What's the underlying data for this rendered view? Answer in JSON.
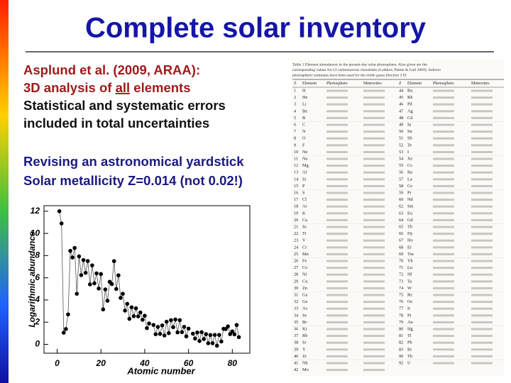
{
  "slide": {
    "title": "Complete solar inventory",
    "text_lines": [
      [
        "Asplund et al. (2009, ARAA):"
      ],
      [
        "3D analysis of ",
        "all",
        " elements"
      ],
      [
        "Statistical and systematic errors"
      ],
      [
        "included in total uncertainties"
      ],
      [
        "Revising an astronomical yardstick"
      ],
      [
        "Solar metallicity Z=0.014 (not 0.02!)"
      ]
    ]
  },
  "chart_data": {
    "type": "line",
    "xlabel": "Atomic number",
    "ylabel": "Logarithmic abundance",
    "color": "#000000",
    "x": [
      1,
      2,
      3,
      4,
      5,
      6,
      7,
      8,
      9,
      10,
      11,
      12,
      13,
      14,
      15,
      16,
      17,
      18,
      19,
      20,
      21,
      22,
      23,
      24,
      25,
      26,
      27,
      28,
      29,
      30,
      31,
      32,
      33,
      34,
      35,
      36,
      37,
      38,
      39,
      40,
      41,
      42,
      43,
      44,
      45,
      46,
      47,
      48,
      49,
      50,
      51,
      52,
      53,
      54,
      55,
      56,
      57,
      58,
      59,
      60,
      61,
      62,
      63,
      64,
      65,
      66,
      67,
      68,
      69,
      70,
      71,
      72,
      73,
      74,
      75,
      76,
      77,
      78,
      79,
      80,
      81,
      82,
      83
    ],
    "values": [
      12.0,
      10.9,
      1.05,
      1.38,
      2.7,
      8.43,
      7.83,
      8.69,
      4.56,
      7.93,
      6.24,
      7.6,
      6.45,
      7.51,
      5.41,
      7.12,
      5.5,
      6.4,
      5.03,
      6.34,
      3.15,
      4.95,
      3.93,
      5.64,
      5.43,
      7.5,
      4.99,
      6.22,
      4.19,
      4.56,
      3.04,
      3.65,
      2.3,
      3.34,
      2.54,
      3.25,
      2.52,
      2.87,
      2.21,
      2.58,
      1.46,
      1.88,
      null,
      1.75,
      0.91,
      1.57,
      0.94,
      1.71,
      0.8,
      2.04,
      1.01,
      2.18,
      1.55,
      2.24,
      1.08,
      2.18,
      1.1,
      1.58,
      0.72,
      1.42,
      null,
      0.96,
      0.52,
      1.07,
      0.3,
      1.1,
      0.48,
      0.92,
      0.1,
      0.84,
      0.1,
      0.85,
      -0.12,
      0.85,
      0.26,
      1.4,
      1.38,
      1.62,
      0.92,
      1.17,
      0.9,
      1.75,
      0.65
    ],
    "xlim": [
      -6,
      88
    ],
    "ylim": [
      -0.8,
      12.5
    ],
    "xticks": [
      0,
      20,
      40,
      60,
      80
    ],
    "yticks": [
      0,
      2,
      4,
      6,
      8,
      10,
      12
    ]
  },
  "table": {
    "caption": [
      "Table 1 Element abundances in the present-day solar photosphere. Also given are the",
      "corresponding values for CI carbonaceous chondrites (Lodders, Palme & Gail 2009). Indirect",
      "photospheric estimates have been used for the noble gases (Section 3.9)"
    ],
    "header": [
      "Z",
      "Element",
      "Photosphere",
      "Meteorites",
      "Z",
      "Element",
      "Photosphere",
      "Meteorites"
    ],
    "rows": [
      [
        "1",
        "H",
        "44",
        "Ru"
      ],
      [
        "2",
        "He",
        "45",
        "Rh"
      ],
      [
        "3",
        "Li",
        "46",
        "Pd"
      ],
      [
        "4",
        "Be",
        "47",
        "Ag"
      ],
      [
        "5",
        "B",
        "48",
        "Cd"
      ],
      [
        "6",
        "C",
        "49",
        "In"
      ],
      [
        "7",
        "N",
        "50",
        "Sn"
      ],
      [
        "8",
        "O",
        "51",
        "Sb"
      ],
      [
        "9",
        "F",
        "52",
        "Te"
      ],
      [
        "10",
        "Ne",
        "53",
        "I"
      ],
      [
        "11",
        "Na",
        "54",
        "Xe"
      ],
      [
        "12",
        "Mg",
        "55",
        "Cs"
      ],
      [
        "13",
        "Al",
        "56",
        "Ba"
      ],
      [
        "14",
        "Si",
        "57",
        "La"
      ],
      [
        "15",
        "P",
        "58",
        "Ce"
      ],
      [
        "16",
        "S",
        "59",
        "Pr"
      ],
      [
        "17",
        "Cl",
        "60",
        "Nd"
      ],
      [
        "18",
        "Ar",
        "62",
        "Sm"
      ],
      [
        "19",
        "K",
        "63",
        "Eu"
      ],
      [
        "20",
        "Ca",
        "64",
        "Gd"
      ],
      [
        "21",
        "Sc",
        "65",
        "Tb"
      ],
      [
        "22",
        "Ti",
        "66",
        "Dy"
      ],
      [
        "23",
        "V",
        "67",
        "Ho"
      ],
      [
        "24",
        "Cr",
        "68",
        "Er"
      ],
      [
        "25",
        "Mn",
        "69",
        "Tm"
      ],
      [
        "26",
        "Fe",
        "70",
        "Yb"
      ],
      [
        "27",
        "Co",
        "71",
        "Lu"
      ],
      [
        "28",
        "Ni",
        "72",
        "Hf"
      ],
      [
        "29",
        "Cu",
        "73",
        "Ta"
      ],
      [
        "30",
        "Zn",
        "74",
        "W"
      ],
      [
        "31",
        "Ga",
        "75",
        "Re"
      ],
      [
        "32",
        "Ge",
        "76",
        "Os"
      ],
      [
        "33",
        "As",
        "77",
        "Ir"
      ],
      [
        "34",
        "Se",
        "78",
        "Pt"
      ],
      [
        "35",
        "Br",
        "79",
        "Au"
      ],
      [
        "36",
        "Kr",
        "80",
        "Hg"
      ],
      [
        "37",
        "Rb",
        "81",
        "Tl"
      ],
      [
        "38",
        "Sr",
        "82",
        "Pb"
      ],
      [
        "39",
        "Y",
        "83",
        "Bi"
      ],
      [
        "40",
        "Zr",
        "90",
        "Th"
      ],
      [
        "41",
        "Nb",
        "92",
        "U"
      ],
      [
        "42",
        "Mo",
        "",
        ""
      ]
    ]
  }
}
